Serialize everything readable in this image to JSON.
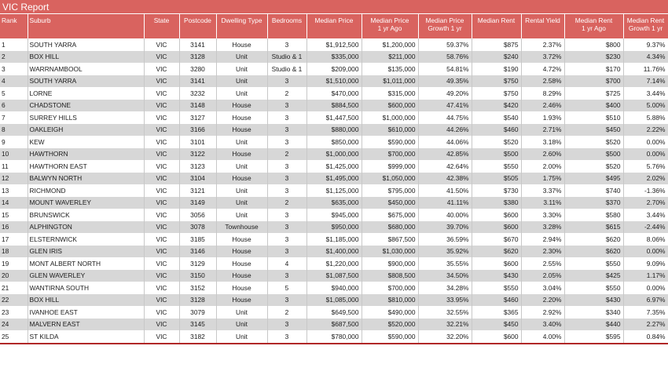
{
  "title": "VIC Report",
  "headers": {
    "rank": "Rank",
    "suburb": "Suburb",
    "state": "State",
    "postcode": "Postcode",
    "dwelling_type": "Dwelling Type",
    "bedrooms": "Bedrooms",
    "median_price": "Median Price",
    "median_price_1yr_line1": "Median Price",
    "median_price_1yr_line2": "1 yr Ago",
    "median_price_growth_line1": "Median Price",
    "median_price_growth_line2": "Growth 1 yr",
    "median_rent": "Median Rent",
    "rental_yield": "Rental Yield",
    "median_rent_1yr_line1": "Median Rent",
    "median_rent_1yr_line2": "1 yr Ago",
    "median_rent_growth_line1": "Median Rent",
    "median_rent_growth_line2": "Growth 1 yr"
  },
  "rows": [
    {
      "rank": "1",
      "suburb": "SOUTH YARRA",
      "state": "VIC",
      "postcode": "3141",
      "type": "House",
      "beds": "3",
      "price": "$1,912,500",
      "price_1yr": "$1,200,000",
      "price_growth": "59.37%",
      "rent": "$875",
      "yield": "2.37%",
      "rent_1yr": "$800",
      "rent_growth": "9.37%"
    },
    {
      "rank": "2",
      "suburb": "BOX HILL",
      "state": "VIC",
      "postcode": "3128",
      "type": "Unit",
      "beds": "Studio & 1",
      "price": "$335,000",
      "price_1yr": "$211,000",
      "price_growth": "58.76%",
      "rent": "$240",
      "yield": "3.72%",
      "rent_1yr": "$230",
      "rent_growth": "4.34%"
    },
    {
      "rank": "3",
      "suburb": "WARRNAMBOOL",
      "state": "VIC",
      "postcode": "3280",
      "type": "Unit",
      "beds": "Studio & 1",
      "price": "$209,000",
      "price_1yr": "$135,000",
      "price_growth": "54.81%",
      "rent": "$190",
      "yield": "4.72%",
      "rent_1yr": "$170",
      "rent_growth": "11.76%"
    },
    {
      "rank": "4",
      "suburb": "SOUTH YARRA",
      "state": "VIC",
      "postcode": "3141",
      "type": "Unit",
      "beds": "3",
      "price": "$1,510,000",
      "price_1yr": "$1,011,000",
      "price_growth": "49.35%",
      "rent": "$750",
      "yield": "2.58%",
      "rent_1yr": "$700",
      "rent_growth": "7.14%"
    },
    {
      "rank": "5",
      "suburb": "LORNE",
      "state": "VIC",
      "postcode": "3232",
      "type": "Unit",
      "beds": "2",
      "price": "$470,000",
      "price_1yr": "$315,000",
      "price_growth": "49.20%",
      "rent": "$750",
      "yield": "8.29%",
      "rent_1yr": "$725",
      "rent_growth": "3.44%"
    },
    {
      "rank": "6",
      "suburb": "CHADSTONE",
      "state": "VIC",
      "postcode": "3148",
      "type": "House",
      "beds": "3",
      "price": "$884,500",
      "price_1yr": "$600,000",
      "price_growth": "47.41%",
      "rent": "$420",
      "yield": "2.46%",
      "rent_1yr": "$400",
      "rent_growth": "5.00%"
    },
    {
      "rank": "7",
      "suburb": "SURREY HILLS",
      "state": "VIC",
      "postcode": "3127",
      "type": "House",
      "beds": "3",
      "price": "$1,447,500",
      "price_1yr": "$1,000,000",
      "price_growth": "44.75%",
      "rent": "$540",
      "yield": "1.93%",
      "rent_1yr": "$510",
      "rent_growth": "5.88%"
    },
    {
      "rank": "8",
      "suburb": "OAKLEIGH",
      "state": "VIC",
      "postcode": "3166",
      "type": "House",
      "beds": "3",
      "price": "$880,000",
      "price_1yr": "$610,000",
      "price_growth": "44.26%",
      "rent": "$460",
      "yield": "2.71%",
      "rent_1yr": "$450",
      "rent_growth": "2.22%"
    },
    {
      "rank": "9",
      "suburb": "KEW",
      "state": "VIC",
      "postcode": "3101",
      "type": "Unit",
      "beds": "3",
      "price": "$850,000",
      "price_1yr": "$590,000",
      "price_growth": "44.06%",
      "rent": "$520",
      "yield": "3.18%",
      "rent_1yr": "$520",
      "rent_growth": "0.00%"
    },
    {
      "rank": "10",
      "suburb": "HAWTHORN",
      "state": "VIC",
      "postcode": "3122",
      "type": "House",
      "beds": "2",
      "price": "$1,000,000",
      "price_1yr": "$700,000",
      "price_growth": "42.85%",
      "rent": "$500",
      "yield": "2.60%",
      "rent_1yr": "$500",
      "rent_growth": "0.00%"
    },
    {
      "rank": "11",
      "suburb": "HAWTHORN EAST",
      "state": "VIC",
      "postcode": "3123",
      "type": "Unit",
      "beds": "3",
      "price": "$1,425,000",
      "price_1yr": "$999,000",
      "price_growth": "42.64%",
      "rent": "$550",
      "yield": "2.00%",
      "rent_1yr": "$520",
      "rent_growth": "5.76%"
    },
    {
      "rank": "12",
      "suburb": "BALWYN NORTH",
      "state": "VIC",
      "postcode": "3104",
      "type": "House",
      "beds": "3",
      "price": "$1,495,000",
      "price_1yr": "$1,050,000",
      "price_growth": "42.38%",
      "rent": "$505",
      "yield": "1.75%",
      "rent_1yr": "$495",
      "rent_growth": "2.02%"
    },
    {
      "rank": "13",
      "suburb": "RICHMOND",
      "state": "VIC",
      "postcode": "3121",
      "type": "Unit",
      "beds": "3",
      "price": "$1,125,000",
      "price_1yr": "$795,000",
      "price_growth": "41.50%",
      "rent": "$730",
      "yield": "3.37%",
      "rent_1yr": "$740",
      "rent_growth": "-1.36%"
    },
    {
      "rank": "14",
      "suburb": "MOUNT WAVERLEY",
      "state": "VIC",
      "postcode": "3149",
      "type": "Unit",
      "beds": "2",
      "price": "$635,000",
      "price_1yr": "$450,000",
      "price_growth": "41.11%",
      "rent": "$380",
      "yield": "3.11%",
      "rent_1yr": "$370",
      "rent_growth": "2.70%"
    },
    {
      "rank": "15",
      "suburb": "BRUNSWICK",
      "state": "VIC",
      "postcode": "3056",
      "type": "Unit",
      "beds": "3",
      "price": "$945,000",
      "price_1yr": "$675,000",
      "price_growth": "40.00%",
      "rent": "$600",
      "yield": "3.30%",
      "rent_1yr": "$580",
      "rent_growth": "3.44%"
    },
    {
      "rank": "16",
      "suburb": "ALPHINGTON",
      "state": "VIC",
      "postcode": "3078",
      "type": "Townhouse",
      "beds": "3",
      "price": "$950,000",
      "price_1yr": "$680,000",
      "price_growth": "39.70%",
      "rent": "$600",
      "yield": "3.28%",
      "rent_1yr": "$615",
      "rent_growth": "-2.44%"
    },
    {
      "rank": "17",
      "suburb": "ELSTERNWICK",
      "state": "VIC",
      "postcode": "3185",
      "type": "House",
      "beds": "3",
      "price": "$1,185,000",
      "price_1yr": "$867,500",
      "price_growth": "36.59%",
      "rent": "$670",
      "yield": "2.94%",
      "rent_1yr": "$620",
      "rent_growth": "8.06%"
    },
    {
      "rank": "18",
      "suburb": "GLEN IRIS",
      "state": "VIC",
      "postcode": "3146",
      "type": "House",
      "beds": "3",
      "price": "$1,400,000",
      "price_1yr": "$1,030,000",
      "price_growth": "35.92%",
      "rent": "$620",
      "yield": "2.30%",
      "rent_1yr": "$620",
      "rent_growth": "0.00%"
    },
    {
      "rank": "19",
      "suburb": "MONT ALBERT NORTH",
      "state": "VIC",
      "postcode": "3129",
      "type": "House",
      "beds": "4",
      "price": "$1,220,000",
      "price_1yr": "$900,000",
      "price_growth": "35.55%",
      "rent": "$600",
      "yield": "2.55%",
      "rent_1yr": "$550",
      "rent_growth": "9.09%"
    },
    {
      "rank": "20",
      "suburb": "GLEN WAVERLEY",
      "state": "VIC",
      "postcode": "3150",
      "type": "House",
      "beds": "3",
      "price": "$1,087,500",
      "price_1yr": "$808,500",
      "price_growth": "34.50%",
      "rent": "$430",
      "yield": "2.05%",
      "rent_1yr": "$425",
      "rent_growth": "1.17%"
    },
    {
      "rank": "21",
      "suburb": "WANTIRNA SOUTH",
      "state": "VIC",
      "postcode": "3152",
      "type": "House",
      "beds": "5",
      "price": "$940,000",
      "price_1yr": "$700,000",
      "price_growth": "34.28%",
      "rent": "$550",
      "yield": "3.04%",
      "rent_1yr": "$550",
      "rent_growth": "0.00%"
    },
    {
      "rank": "22",
      "suburb": "BOX HILL",
      "state": "VIC",
      "postcode": "3128",
      "type": "House",
      "beds": "3",
      "price": "$1,085,000",
      "price_1yr": "$810,000",
      "price_growth": "33.95%",
      "rent": "$460",
      "yield": "2.20%",
      "rent_1yr": "$430",
      "rent_growth": "6.97%"
    },
    {
      "rank": "23",
      "suburb": "IVANHOE EAST",
      "state": "VIC",
      "postcode": "3079",
      "type": "Unit",
      "beds": "2",
      "price": "$649,500",
      "price_1yr": "$490,000",
      "price_growth": "32.55%",
      "rent": "$365",
      "yield": "2.92%",
      "rent_1yr": "$340",
      "rent_growth": "7.35%"
    },
    {
      "rank": "24",
      "suburb": "MALVERN EAST",
      "state": "VIC",
      "postcode": "3145",
      "type": "Unit",
      "beds": "3",
      "price": "$687,500",
      "price_1yr": "$520,000",
      "price_growth": "32.21%",
      "rent": "$450",
      "yield": "3.40%",
      "rent_1yr": "$440",
      "rent_growth": "2.27%"
    },
    {
      "rank": "25",
      "suburb": "ST KILDA",
      "state": "VIC",
      "postcode": "3182",
      "type": "Unit",
      "beds": "3",
      "price": "$780,000",
      "price_1yr": "$590,000",
      "price_growth": "32.20%",
      "rent": "$600",
      "yield": "4.00%",
      "rent_1yr": "$595",
      "rent_growth": "0.84%"
    }
  ]
}
